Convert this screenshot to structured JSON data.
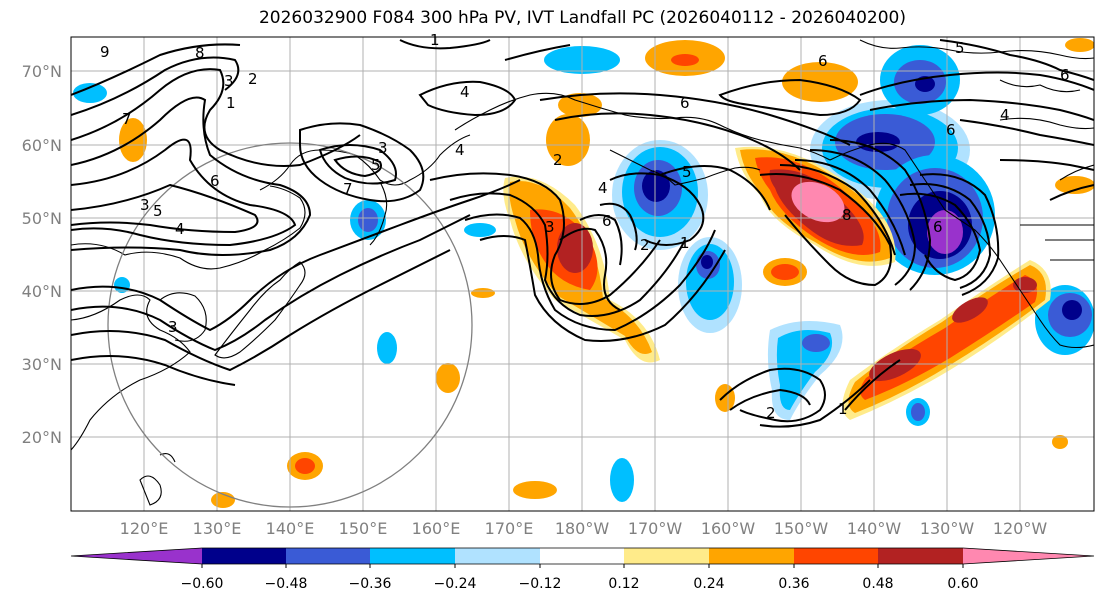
{
  "title": "2026032900 F084 300 hPa PV, IVT Landfall PC (2026040112 - 2026040200)",
  "lat_ticks": [
    "70°N",
    "60°N",
    "50°N",
    "40°N",
    "30°N",
    "20°N"
  ],
  "lon_ticks": [
    "120°E",
    "130°E",
    "140°E",
    "150°E",
    "160°E",
    "170°E",
    "180°W",
    "170°W",
    "160°W",
    "150°W",
    "140°W",
    "130°W",
    "120°W"
  ],
  "colorbar": {
    "tick_labels": [
      "−0.60",
      "−0.48",
      "−0.36",
      "−0.24",
      "−0.12",
      "0.12",
      "0.24",
      "0.36",
      "0.48",
      "0.60"
    ],
    "colors": [
      "#9932cc",
      "#00008b",
      "#3a5bd6",
      "#00bfff",
      "#b0e2ff",
      "#ffffff",
      "#ffeb8a",
      "#ffa500",
      "#ff4500",
      "#b22222",
      "#ff88b0"
    ]
  },
  "contour_labels": [
    "9",
    "8",
    "3",
    "2",
    "1",
    "1",
    "4",
    "6",
    "5",
    "6",
    "7",
    "5",
    "4",
    "3",
    "5",
    "7",
    "3",
    "2",
    "3",
    "4",
    "6",
    "2",
    "1",
    "6",
    "5",
    "8",
    "6",
    "2",
    "1",
    "6",
    "4",
    "3",
    "4",
    "6"
  ]
}
